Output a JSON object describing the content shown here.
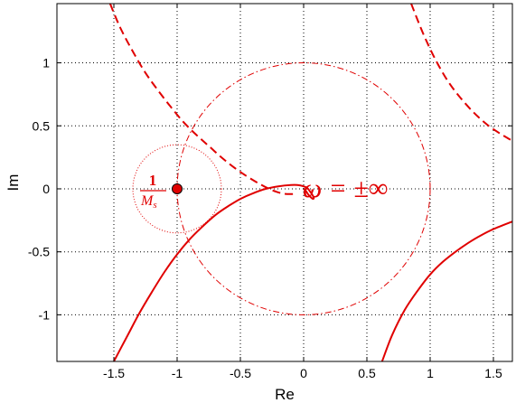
{
  "chart_data": {
    "type": "line",
    "xlabel": "Re",
    "ylabel": "Im",
    "xlim": [
      -1.95,
      1.65
    ],
    "ylim": [
      -1.37,
      1.47
    ],
    "grid": true,
    "x_ticks": [
      -1.5,
      -1,
      -0.5,
      0,
      0.5,
      1,
      1.5
    ],
    "x_tick_labels": [
      "-1.5",
      "-1",
      "-0.5",
      "0",
      "0.5",
      "1",
      "1.5"
    ],
    "y_ticks": [
      -1,
      -0.5,
      0,
      0.5,
      1
    ],
    "y_tick_labels": [
      "-1",
      "-0.5",
      "0",
      "0.5",
      "1"
    ],
    "colors": {
      "curve": "#e00000",
      "grid": "#000000"
    },
    "series": [
      {
        "style": "solid",
        "x": [
          -1.5,
          -1.4,
          -1.3,
          -1.2,
          -1.1,
          -1.0,
          -0.9,
          -0.8,
          -0.7,
          -0.6,
          -0.5,
          -0.4,
          -0.3,
          -0.2,
          -0.1,
          -0.05,
          0,
          0.03,
          0.05,
          0.07,
          0.08,
          0.075,
          0.06,
          0.04,
          0.02,
          0.0
        ],
        "y": [
          -1.37,
          -1.18,
          -0.99,
          -0.82,
          -0.66,
          -0.52,
          -0.4,
          -0.3,
          -0.21,
          -0.14,
          -0.08,
          -0.035,
          0.0,
          0.02,
          0.03,
          0.03,
          0.02,
          0.005,
          -0.02,
          -0.05,
          -0.07,
          -0.08,
          -0.07,
          -0.05,
          -0.02,
          0.0
        ]
      },
      {
        "style": "solid",
        "x": [
          0.62,
          0.7,
          0.8,
          0.9,
          1.0,
          1.1,
          1.2,
          1.3,
          1.4,
          1.5,
          1.65
        ],
        "y": [
          -1.37,
          -1.16,
          -0.96,
          -0.81,
          -0.68,
          -0.58,
          -0.5,
          -0.43,
          -0.37,
          -0.32,
          -0.26
        ]
      },
      {
        "style": "dashed",
        "x": [
          -1.53,
          -1.45,
          -1.35,
          -1.25,
          -1.15,
          -1.05,
          -0.95,
          -0.85,
          -0.75,
          -0.65,
          -0.55,
          -0.45,
          -0.35,
          -0.25,
          -0.15,
          -0.05
        ],
        "y": [
          1.47,
          1.28,
          1.09,
          0.92,
          0.78,
          0.65,
          0.53,
          0.43,
          0.34,
          0.25,
          0.17,
          0.1,
          0.04,
          -0.01,
          -0.04,
          -0.04
        ]
      },
      {
        "style": "dashed",
        "x": [
          0.85,
          0.95,
          1.05,
          1.15,
          1.25,
          1.35,
          1.45,
          1.55,
          1.65
        ],
        "y": [
          1.47,
          1.22,
          1.01,
          0.84,
          0.71,
          0.6,
          0.51,
          0.44,
          0.38
        ]
      },
      {
        "style": "dashdot",
        "shape": "circle",
        "center": [
          0,
          0
        ],
        "radius": 1
      },
      {
        "style": "dotted",
        "shape": "circle",
        "center": [
          -1,
          0
        ],
        "radius": 0.35
      },
      {
        "style": "marker",
        "x": [
          -1
        ],
        "y": [
          0
        ]
      }
    ],
    "annotations": [
      {
        "text": "1 / M_s",
        "numerator": "1",
        "denominator": "M",
        "denominator_sub": "s",
        "x": -1.35,
        "y": 0
      },
      {
        "text": "ω = ±∞",
        "x": 0.0,
        "y": 0.02
      }
    ]
  }
}
